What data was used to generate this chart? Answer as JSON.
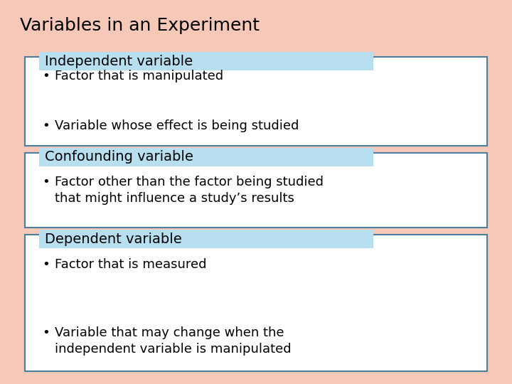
{
  "title": "Variables in an Experiment",
  "background_color": "#f5c8b8",
  "header_bg_color": "#b8dff0",
  "box_bg_color": "#ffffff",
  "box_border_color": "#4a7fa0",
  "title_fontsize": 18,
  "header_fontsize": 14,
  "bullet_fontsize": 13,
  "sections": [
    {
      "header": "Independent variable",
      "bullets": [
        "Factor that is manipulated",
        "Variable whose effect is being studied"
      ]
    },
    {
      "header": "Confounding variable",
      "bullets": [
        "Factor other than the factor being studied\nthat might influence a study’s results"
      ]
    },
    {
      "header": "Dependent variable",
      "bullets": [
        "Factor that is measured",
        "Variable that may change when the\nindependent variable is manipulated"
      ]
    }
  ]
}
